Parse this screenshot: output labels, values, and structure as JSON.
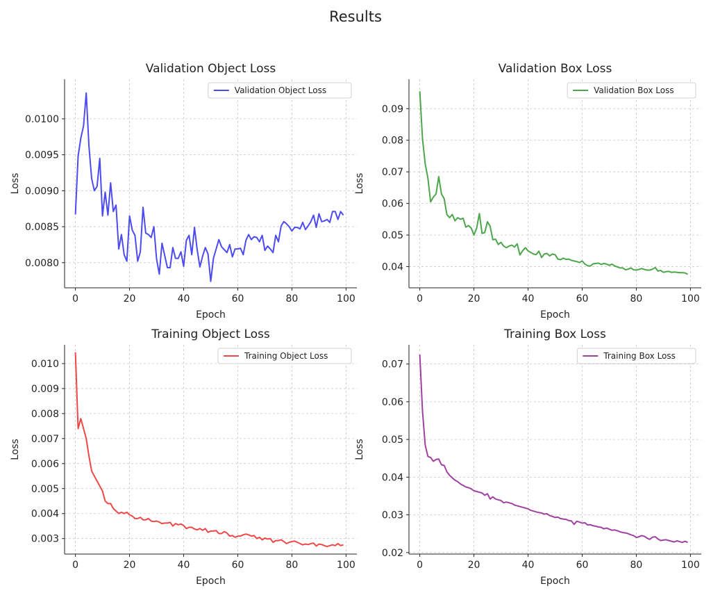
{
  "suptitle": "Results",
  "chart_data": [
    {
      "type": "line",
      "title": "Validation Object Loss",
      "xlabel": "Epoch",
      "ylabel": "Loss",
      "xlim": [
        -4,
        104
      ],
      "ylim": [
        0.00765,
        0.01055
      ],
      "xticks": [
        0,
        20,
        40,
        60,
        80,
        100
      ],
      "yticks": [
        0.008,
        0.0085,
        0.009,
        0.0095,
        0.01
      ],
      "ytick_labels": [
        "0.0080",
        "0.0085",
        "0.0090",
        "0.0095",
        "0.0100"
      ],
      "grid": true,
      "legend": "upper right",
      "series": [
        {
          "name": "Validation Object Loss",
          "color": "#4b4bf0",
          "y": [
            0.00867,
            0.00948,
            0.00973,
            0.0099,
            0.01036,
            0.00962,
            0.00917,
            0.009,
            0.00906,
            0.00945,
            0.00865,
            0.00898,
            0.00866,
            0.00911,
            0.00871,
            0.0088,
            0.00819,
            0.00839,
            0.00811,
            0.00802,
            0.00865,
            0.00845,
            0.00838,
            0.00802,
            0.00815,
            0.00877,
            0.00841,
            0.00839,
            0.00835,
            0.0085,
            0.00805,
            0.00784,
            0.00827,
            0.0081,
            0.00793,
            0.00793,
            0.00821,
            0.00806,
            0.00806,
            0.00815,
            0.00795,
            0.00831,
            0.00838,
            0.00811,
            0.00849,
            0.00818,
            0.00794,
            0.00809,
            0.00821,
            0.00812,
            0.00774,
            0.00806,
            0.00819,
            0.00832,
            0.00822,
            0.00818,
            0.00814,
            0.00825,
            0.00808,
            0.00819,
            0.00819,
            0.0082,
            0.00811,
            0.00831,
            0.00839,
            0.00832,
            0.00836,
            0.00835,
            0.00829,
            0.00838,
            0.00817,
            0.00823,
            0.00819,
            0.00814,
            0.00838,
            0.00829,
            0.00851,
            0.00857,
            0.00854,
            0.0085,
            0.00844,
            0.00849,
            0.00849,
            0.00847,
            0.00856,
            0.00846,
            0.00851,
            0.00857,
            0.00866,
            0.00849,
            0.00868,
            0.00857,
            0.00858,
            0.0086,
            0.00856,
            0.00871,
            0.00871,
            0.0086,
            0.00871,
            0.00866
          ]
        }
      ]
    },
    {
      "type": "line",
      "title": "Validation Box Loss",
      "xlabel": "Epoch",
      "ylabel": "Loss",
      "xlim": [
        -4,
        104
      ],
      "ylim": [
        0.0333,
        0.0993
      ],
      "xticks": [
        0,
        20,
        40,
        60,
        80,
        100
      ],
      "yticks": [
        0.04,
        0.05,
        0.06,
        0.07,
        0.08,
        0.09
      ],
      "ytick_labels": [
        "0.04",
        "0.05",
        "0.06",
        "0.07",
        "0.08",
        "0.09"
      ],
      "grid": true,
      "legend": "upper right",
      "series": [
        {
          "name": "Validation Box Loss",
          "color": "#4ca64c",
          "y": [
            0.0955,
            0.0805,
            0.0725,
            0.068,
            0.0605,
            0.062,
            0.063,
            0.0685,
            0.063,
            0.0615,
            0.0565,
            0.0555,
            0.0565,
            0.0545,
            0.0555,
            0.055,
            0.0553,
            0.0525,
            0.053,
            0.0522,
            0.05,
            0.0522,
            0.0568,
            0.0505,
            0.0508,
            0.0542,
            0.0528,
            0.0485,
            0.0487,
            0.047,
            0.0477,
            0.0465,
            0.046,
            0.0465,
            0.0468,
            0.0462,
            0.0472,
            0.0437,
            0.045,
            0.046,
            0.045,
            0.0445,
            0.044,
            0.0438,
            0.0449,
            0.0429,
            0.044,
            0.0442,
            0.0434,
            0.044,
            0.0438,
            0.0424,
            0.0422,
            0.0427,
            0.0423,
            0.0424,
            0.042,
            0.0418,
            0.0416,
            0.0413,
            0.0418,
            0.0408,
            0.0403,
            0.0402,
            0.0409,
            0.041,
            0.0411,
            0.0407,
            0.041,
            0.0408,
            0.0404,
            0.0408,
            0.0402,
            0.0399,
            0.0396,
            0.0396,
            0.039,
            0.0392,
            0.0396,
            0.039,
            0.0389,
            0.0391,
            0.0394,
            0.0391,
            0.0389,
            0.0389,
            0.0392,
            0.0397,
            0.0386,
            0.0388,
            0.0382,
            0.0384,
            0.0385,
            0.0382,
            0.0383,
            0.0382,
            0.0381,
            0.0381,
            0.038,
            0.0376
          ]
        }
      ]
    },
    {
      "type": "line",
      "title": "Training Object Loss",
      "xlabel": "Epoch",
      "ylabel": "Loss",
      "xlim": [
        -4,
        104
      ],
      "ylim": [
        0.00238,
        0.01075
      ],
      "xticks": [
        0,
        20,
        40,
        60,
        80,
        100
      ],
      "yticks": [
        0.003,
        0.004,
        0.005,
        0.006,
        0.007,
        0.008,
        0.009,
        0.01
      ],
      "ytick_labels": [
        "0.003",
        "0.004",
        "0.005",
        "0.006",
        "0.007",
        "0.008",
        "0.009",
        "0.010"
      ],
      "grid": true,
      "legend": "upper right",
      "series": [
        {
          "name": "Training Object Loss",
          "color": "#f04646",
          "y": [
            0.01045,
            0.0074,
            0.0078,
            0.0074,
            0.007,
            0.0063,
            0.0057,
            0.0055,
            0.0053,
            0.0051,
            0.0049,
            0.0045,
            0.0044,
            0.0044,
            0.0042,
            0.0041,
            0.004,
            0.00405,
            0.004,
            0.00405,
            0.00395,
            0.0039,
            0.0038,
            0.0038,
            0.00385,
            0.00375,
            0.00375,
            0.0038,
            0.0037,
            0.00368,
            0.0037,
            0.00366,
            0.0036,
            0.00362,
            0.00362,
            0.00365,
            0.0035,
            0.0036,
            0.00355,
            0.00358,
            0.00352,
            0.0034,
            0.00345,
            0.00345,
            0.00338,
            0.00335,
            0.0034,
            0.00333,
            0.0034,
            0.00325,
            0.0033,
            0.0033,
            0.00332,
            0.0032,
            0.0032,
            0.00328,
            0.00322,
            0.0031,
            0.00312,
            0.00305,
            0.0031,
            0.0031,
            0.00315,
            0.00318,
            0.00315,
            0.0031,
            0.00312,
            0.003,
            0.00305,
            0.00295,
            0.00302,
            0.00298,
            0.003,
            0.00285,
            0.00292,
            0.00292,
            0.00295,
            0.00288,
            0.0028,
            0.00285,
            0.00288,
            0.0029,
            0.00285,
            0.0028,
            0.00275,
            0.00278,
            0.00276,
            0.0028,
            0.00282,
            0.0027,
            0.00278,
            0.00276,
            0.00272,
            0.00268,
            0.00272,
            0.00275,
            0.00272,
            0.0028,
            0.00272,
            0.00275
          ]
        }
      ]
    },
    {
      "type": "line",
      "title": "Training Box Loss",
      "xlabel": "Epoch",
      "ylabel": "Loss",
      "xlim": [
        -4,
        104
      ],
      "ylim": [
        0.0196,
        0.0751
      ],
      "xticks": [
        0,
        20,
        40,
        60,
        80,
        100
      ],
      "yticks": [
        0.02,
        0.03,
        0.04,
        0.05,
        0.06,
        0.07
      ],
      "ytick_labels": [
        "0.02",
        "0.03",
        "0.04",
        "0.05",
        "0.06",
        "0.07"
      ],
      "grid": true,
      "legend": "upper right",
      "series": [
        {
          "name": "Training Box Loss",
          "color": "#a040a0",
          "y": [
            0.0725,
            0.0575,
            0.0485,
            0.0455,
            0.0452,
            0.0442,
            0.0447,
            0.0448,
            0.0433,
            0.0431,
            0.0414,
            0.0405,
            0.0398,
            0.0392,
            0.0388,
            0.0382,
            0.0378,
            0.0374,
            0.0372,
            0.0369,
            0.0364,
            0.0362,
            0.036,
            0.0358,
            0.0352,
            0.0356,
            0.0342,
            0.0348,
            0.0342,
            0.034,
            0.0338,
            0.0332,
            0.0334,
            0.0332,
            0.033,
            0.0326,
            0.0324,
            0.0322,
            0.032,
            0.0318,
            0.0316,
            0.0312,
            0.031,
            0.0308,
            0.0306,
            0.0305,
            0.0302,
            0.0303,
            0.0298,
            0.0296,
            0.0293,
            0.0294,
            0.029,
            0.0289,
            0.0288,
            0.0285,
            0.0284,
            0.0275,
            0.0283,
            0.0281,
            0.0278,
            0.0279,
            0.0273,
            0.0274,
            0.0271,
            0.027,
            0.0268,
            0.0267,
            0.0263,
            0.0265,
            0.0262,
            0.0259,
            0.026,
            0.0258,
            0.0255,
            0.0253,
            0.0252,
            0.025,
            0.0247,
            0.0245,
            0.024,
            0.0242,
            0.0245,
            0.0243,
            0.0238,
            0.0235,
            0.0241,
            0.0242,
            0.0236,
            0.0232,
            0.0233,
            0.0234,
            0.0232,
            0.023,
            0.0228,
            0.0231,
            0.0229,
            0.0227,
            0.023,
            0.0227
          ]
        }
      ]
    }
  ]
}
